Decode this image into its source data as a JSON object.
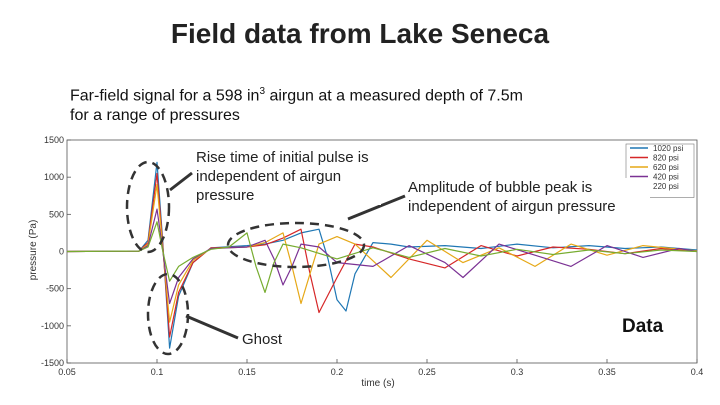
{
  "slide": {
    "title": "Field data from Lake Seneca",
    "subtitle_pre": "Far-field signal for a 598 in",
    "subtitle_sup": "3",
    "subtitle_post": " airgun at a measured depth of 7.5m for a range of pressures",
    "note_rise": "Rise time of initial pulse is independent of airgun pressure",
    "note_bubble": "Amplitude of bubble peak is independent of airgun pressure",
    "note_ghost": "Ghost",
    "data_label": "Data"
  },
  "chart_data": {
    "type": "line",
    "xlabel": "time (s)",
    "ylabel": "pressure (Pa)",
    "xlim": [
      0.05,
      0.4
    ],
    "ylim": [
      -1500,
      1500
    ],
    "xticks": [
      "0.05",
      "0.1",
      "0.15",
      "0.2",
      "0.25",
      "0.3",
      "0.35",
      "0.4"
    ],
    "yticks": [
      "1500",
      "1000",
      "500",
      "0",
      "-500",
      "-1000",
      "-1500"
    ],
    "grid": false,
    "legend_position": "top-right",
    "series": [
      {
        "name": "1020 psi",
        "color": "#1f77b4",
        "points": [
          [
            0.05,
            0
          ],
          [
            0.09,
            5
          ],
          [
            0.095,
            150
          ],
          [
            0.1,
            1200
          ],
          [
            0.103,
            200
          ],
          [
            0.107,
            -1300
          ],
          [
            0.112,
            -600
          ],
          [
            0.12,
            -150
          ],
          [
            0.13,
            50
          ],
          [
            0.15,
            80
          ],
          [
            0.16,
            100
          ],
          [
            0.17,
            150
          ],
          [
            0.18,
            250
          ],
          [
            0.19,
            300
          ],
          [
            0.195,
            -100
          ],
          [
            0.2,
            -650
          ],
          [
            0.205,
            -800
          ],
          [
            0.21,
            -300
          ],
          [
            0.22,
            120
          ],
          [
            0.23,
            100
          ],
          [
            0.24,
            60
          ],
          [
            0.26,
            80
          ],
          [
            0.28,
            40
          ],
          [
            0.3,
            100
          ],
          [
            0.32,
            50
          ],
          [
            0.34,
            80
          ],
          [
            0.36,
            40
          ],
          [
            0.38,
            60
          ],
          [
            0.4,
            20
          ]
        ]
      },
      {
        "name": "820 psi",
        "color": "#d62728",
        "points": [
          [
            0.05,
            0
          ],
          [
            0.09,
            5
          ],
          [
            0.095,
            120
          ],
          [
            0.1,
            1050
          ],
          [
            0.103,
            150
          ],
          [
            0.107,
            -1150
          ],
          [
            0.112,
            -550
          ],
          [
            0.12,
            -150
          ],
          [
            0.13,
            50
          ],
          [
            0.15,
            60
          ],
          [
            0.16,
            90
          ],
          [
            0.17,
            180
          ],
          [
            0.18,
            300
          ],
          [
            0.185,
            -300
          ],
          [
            0.19,
            -820
          ],
          [
            0.2,
            -350
          ],
          [
            0.21,
            100
          ],
          [
            0.22,
            60
          ],
          [
            0.24,
            -100
          ],
          [
            0.26,
            -220
          ],
          [
            0.28,
            80
          ],
          [
            0.3,
            -60
          ],
          [
            0.32,
            60
          ],
          [
            0.34,
            30
          ],
          [
            0.36,
            -30
          ],
          [
            0.38,
            40
          ],
          [
            0.4,
            0
          ]
        ]
      },
      {
        "name": "620 psi",
        "color": "#e6a817",
        "points": [
          [
            0.05,
            0
          ],
          [
            0.09,
            5
          ],
          [
            0.095,
            100
          ],
          [
            0.1,
            900
          ],
          [
            0.103,
            100
          ],
          [
            0.107,
            -950
          ],
          [
            0.112,
            -450
          ],
          [
            0.12,
            -120
          ],
          [
            0.13,
            40
          ],
          [
            0.15,
            60
          ],
          [
            0.16,
            120
          ],
          [
            0.17,
            250
          ],
          [
            0.175,
            -200
          ],
          [
            0.18,
            -700
          ],
          [
            0.185,
            -300
          ],
          [
            0.19,
            100
          ],
          [
            0.2,
            200
          ],
          [
            0.21,
            100
          ],
          [
            0.23,
            -350
          ],
          [
            0.25,
            150
          ],
          [
            0.27,
            -150
          ],
          [
            0.29,
            50
          ],
          [
            0.31,
            -200
          ],
          [
            0.33,
            100
          ],
          [
            0.35,
            -50
          ],
          [
            0.37,
            80
          ],
          [
            0.4,
            10
          ]
        ]
      },
      {
        "name": "420 psi",
        "color": "#7b3294",
        "points": [
          [
            0.05,
            0
          ],
          [
            0.09,
            5
          ],
          [
            0.095,
            80
          ],
          [
            0.1,
            570
          ],
          [
            0.103,
            50
          ],
          [
            0.107,
            -700
          ],
          [
            0.112,
            -350
          ],
          [
            0.12,
            -100
          ],
          [
            0.13,
            40
          ],
          [
            0.15,
            60
          ],
          [
            0.16,
            150
          ],
          [
            0.165,
            -100
          ],
          [
            0.17,
            -450
          ],
          [
            0.175,
            -200
          ],
          [
            0.18,
            100
          ],
          [
            0.19,
            60
          ],
          [
            0.2,
            -150
          ],
          [
            0.22,
            -200
          ],
          [
            0.24,
            80
          ],
          [
            0.26,
            -150
          ],
          [
            0.27,
            -350
          ],
          [
            0.29,
            100
          ],
          [
            0.31,
            -50
          ],
          [
            0.33,
            -200
          ],
          [
            0.35,
            80
          ],
          [
            0.37,
            -80
          ],
          [
            0.39,
            40
          ],
          [
            0.4,
            0
          ]
        ]
      },
      {
        "name": "220 psi",
        "color": "#77ac30",
        "points": [
          [
            0.05,
            0
          ],
          [
            0.09,
            5
          ],
          [
            0.095,
            60
          ],
          [
            0.1,
            400
          ],
          [
            0.103,
            30
          ],
          [
            0.107,
            -400
          ],
          [
            0.112,
            -200
          ],
          [
            0.12,
            -80
          ],
          [
            0.13,
            30
          ],
          [
            0.14,
            60
          ],
          [
            0.15,
            250
          ],
          [
            0.155,
            -200
          ],
          [
            0.16,
            -550
          ],
          [
            0.165,
            -150
          ],
          [
            0.17,
            100
          ],
          [
            0.18,
            50
          ],
          [
            0.2,
            -100
          ],
          [
            0.22,
            50
          ],
          [
            0.24,
            -80
          ],
          [
            0.26,
            40
          ],
          [
            0.28,
            -60
          ],
          [
            0.3,
            30
          ],
          [
            0.32,
            -40
          ],
          [
            0.34,
            20
          ],
          [
            0.36,
            -30
          ],
          [
            0.38,
            20
          ],
          [
            0.4,
            0
          ]
        ]
      }
    ]
  }
}
